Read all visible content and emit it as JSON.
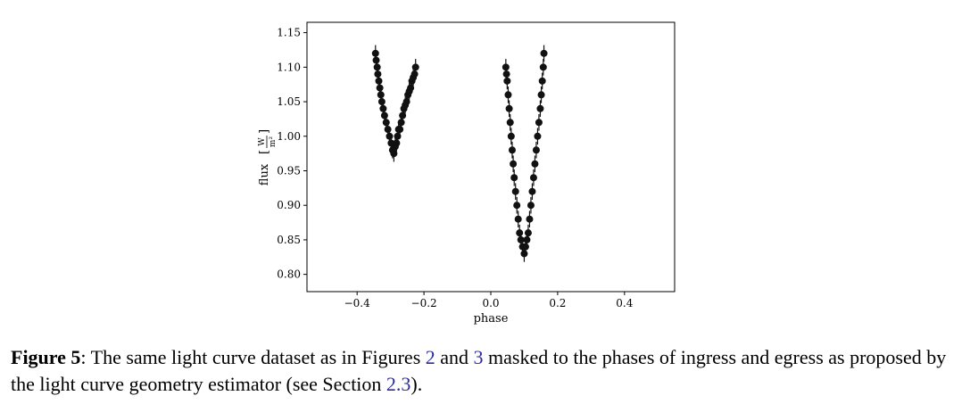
{
  "chart_data": {
    "type": "scatter",
    "title": "",
    "xlabel": "phase",
    "ylabel": "flux [W/m²]",
    "ylabel_main": "flux",
    "ylabel_unit_num": "W",
    "ylabel_unit_den": "m²",
    "xlim": [
      -0.55,
      0.55
    ],
    "ylim": [
      0.775,
      1.165
    ],
    "xticks": [
      -0.4,
      -0.2,
      0.0,
      0.2,
      0.4
    ],
    "xtick_labels": [
      "−0.4",
      "−0.2",
      "0.0",
      "0.2",
      "0.4"
    ],
    "yticks": [
      0.8,
      0.85,
      0.9,
      0.95,
      1.0,
      1.05,
      1.1,
      1.15
    ],
    "ytick_labels": [
      "0.80",
      "0.85",
      "0.90",
      "0.95",
      "1.00",
      "1.05",
      "1.10",
      "1.15"
    ],
    "grid": false,
    "marker_color": "#111111",
    "series": [
      {
        "error": 0.012,
        "points": [
          [
            -0.345,
            1.12
          ],
          [
            -0.343,
            1.11
          ],
          [
            -0.34,
            1.1
          ],
          [
            -0.338,
            1.09
          ],
          [
            -0.335,
            1.08
          ],
          [
            -0.332,
            1.07
          ],
          [
            -0.329,
            1.06
          ],
          [
            -0.326,
            1.05
          ],
          [
            -0.322,
            1.04
          ],
          [
            -0.318,
            1.03
          ],
          [
            -0.313,
            1.02
          ],
          [
            -0.308,
            1.01
          ],
          [
            -0.303,
            1.0
          ],
          [
            -0.298,
            0.99
          ],
          [
            -0.294,
            0.98
          ],
          [
            -0.29,
            0.975
          ],
          [
            -0.286,
            0.985
          ],
          [
            -0.282,
            0.99
          ],
          [
            -0.279,
            1.0
          ],
          [
            -0.276,
            1.01
          ],
          [
            -0.272,
            1.01
          ],
          [
            -0.268,
            1.02
          ],
          [
            -0.264,
            1.03
          ],
          [
            -0.26,
            1.04
          ],
          [
            -0.256,
            1.045
          ],
          [
            -0.252,
            1.05
          ],
          [
            -0.248,
            1.06
          ],
          [
            -0.244,
            1.065
          ],
          [
            -0.24,
            1.07
          ],
          [
            -0.236,
            1.08
          ],
          [
            -0.232,
            1.085
          ],
          [
            -0.228,
            1.09
          ],
          [
            -0.225,
            1.1
          ]
        ]
      },
      {
        "error": 0.012,
        "points": [
          [
            0.045,
            1.1
          ],
          [
            0.047,
            1.09
          ],
          [
            0.049,
            1.08
          ],
          [
            0.052,
            1.06
          ],
          [
            0.055,
            1.04
          ],
          [
            0.058,
            1.02
          ],
          [
            0.061,
            1.0
          ],
          [
            0.064,
            0.98
          ],
          [
            0.067,
            0.96
          ],
          [
            0.07,
            0.94
          ],
          [
            0.074,
            0.92
          ],
          [
            0.078,
            0.9
          ],
          [
            0.082,
            0.88
          ],
          [
            0.086,
            0.86
          ],
          [
            0.09,
            0.85
          ],
          [
            0.095,
            0.84
          ],
          [
            0.1,
            0.83
          ],
          [
            0.104,
            0.84
          ],
          [
            0.108,
            0.85
          ],
          [
            0.112,
            0.86
          ],
          [
            0.116,
            0.88
          ],
          [
            0.12,
            0.9
          ],
          [
            0.124,
            0.92
          ],
          [
            0.128,
            0.94
          ],
          [
            0.132,
            0.96
          ],
          [
            0.136,
            0.98
          ],
          [
            0.14,
            1.0
          ],
          [
            0.144,
            1.02
          ],
          [
            0.148,
            1.04
          ],
          [
            0.151,
            1.06
          ],
          [
            0.154,
            1.08
          ],
          [
            0.157,
            1.1
          ],
          [
            0.159,
            1.12
          ]
        ]
      }
    ]
  },
  "caption": {
    "label": "Figure 5",
    "text_1": ": The same light curve dataset as in Figures ",
    "ref_1": "2",
    "text_2": " and ",
    "ref_2": "3",
    "text_3": " masked to the phases of ingress and egress as proposed by the light curve geometry estimator (see Section ",
    "ref_3": "2.3",
    "text_4": ")."
  }
}
